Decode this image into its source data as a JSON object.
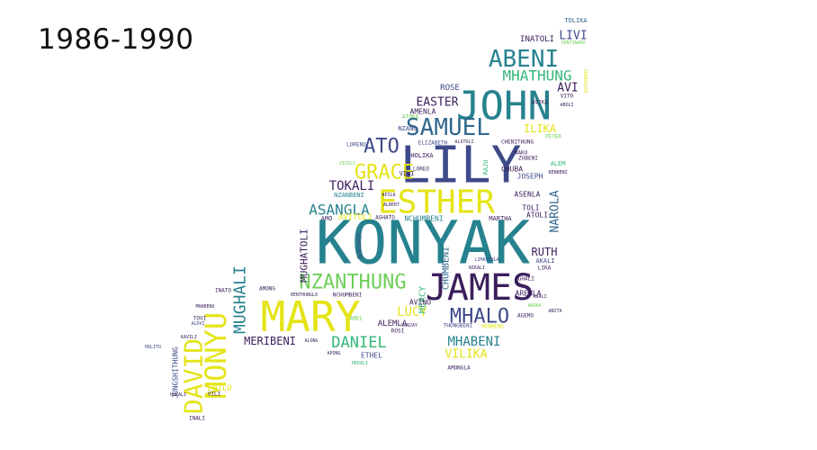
{
  "title": "1986-1990",
  "palette": {
    "dark-purple": "#3b1f5c",
    "indigo": "#3e4a89",
    "blue": "#31688e",
    "teal": "#26828e",
    "green": "#35b779",
    "lime": "#6ece58",
    "yellow": "#e4e419"
  },
  "words": [
    {
      "text": "KONYAK",
      "color": "#26828e"
    },
    {
      "text": "LILY",
      "color": "#3e4a89"
    },
    {
      "text": "JOHN",
      "color": "#26828e"
    },
    {
      "text": "ESTHER",
      "color": "#e4e419"
    },
    {
      "text": "JAMES",
      "color": "#3b1f5c"
    },
    {
      "text": "MARY",
      "color": "#e4e419"
    },
    {
      "text": "SAMUEL",
      "color": "#31688e"
    },
    {
      "text": "ABENI",
      "color": "#26828e"
    },
    {
      "text": "MONYU",
      "color": "#e4e419"
    },
    {
      "text": "DAVID",
      "color": "#e4e419"
    },
    {
      "text": "NZANTHUNG",
      "color": "#6ece58"
    },
    {
      "text": "MHALO",
      "color": "#3e4a89"
    },
    {
      "text": "GRACE",
      "color": "#e4e419"
    },
    {
      "text": "ATO",
      "color": "#3e4a89"
    },
    {
      "text": "MHATHUNG",
      "color": "#35b779"
    },
    {
      "text": "MUGHALI",
      "color": "#26828e"
    },
    {
      "text": "DANIEL",
      "color": "#35b779"
    },
    {
      "text": "ASANGLA",
      "color": "#26828e"
    },
    {
      "text": "MHABENI",
      "color": "#26828e"
    },
    {
      "text": "TOKALI",
      "color": "#3b1f5c"
    },
    {
      "text": "MERIBENI",
      "color": "#3b1f5c"
    },
    {
      "text": "NAROLA",
      "color": "#31688e"
    },
    {
      "text": "LUCY",
      "color": "#e4e419"
    },
    {
      "text": "EASTER",
      "color": "#3b1f5c"
    },
    {
      "text": "VILIKA",
      "color": "#e4e419"
    },
    {
      "text": "LIVI",
      "color": "#3e4a89"
    },
    {
      "text": "AVI",
      "color": "#3b1f5c"
    },
    {
      "text": "RUTH",
      "color": "#3b1f5c"
    },
    {
      "text": "ILIKA",
      "color": "#e4e419"
    },
    {
      "text": "MUGHATOLI",
      "color": "#3b1f5c"
    },
    {
      "text": "MERCY",
      "color": "#35b779"
    },
    {
      "text": "CHUMBENI",
      "color": "#31688e"
    },
    {
      "text": "ROSE",
      "color": "#3e4a89"
    },
    {
      "text": "ALEMLA",
      "color": "#3b1f5c"
    },
    {
      "text": "AVITOLI",
      "color": "#e4e419"
    },
    {
      "text": "INATOLI",
      "color": "#3b1f5c"
    },
    {
      "text": "TOLIKA",
      "color": "#31688e"
    },
    {
      "text": "AMENLA",
      "color": "#3b1f5c"
    },
    {
      "text": "EMILO",
      "color": "#e4e419"
    },
    {
      "text": "NCHUMBENI",
      "color": "#26828e"
    },
    {
      "text": "ASENLA",
      "color": "#3b1f5c"
    },
    {
      "text": "TOLI",
      "color": "#3b1f5c"
    },
    {
      "text": "ATOLI",
      "color": "#3b1f5c"
    },
    {
      "text": "AKALI",
      "color": "#3e4a89"
    },
    {
      "text": "ARENLA",
      "color": "#3b1f5c"
    },
    {
      "text": "CHUBA",
      "color": "#3b1f5c"
    },
    {
      "text": "JOSEPH",
      "color": "#3e4a89"
    },
    {
      "text": "MARTHA",
      "color": "#3b1f5c"
    },
    {
      "text": "AVINO",
      "color": "#3b1f5c"
    },
    {
      "text": "ETHEL",
      "color": "#3e4a89"
    },
    {
      "text": "AMONGLA",
      "color": "#3b1f5c"
    },
    {
      "text": "NZANBENI",
      "color": "#26828e"
    },
    {
      "text": "LORENO",
      "color": "#3e4a89"
    },
    {
      "text": "HOLIKA",
      "color": "#3b1f5c"
    },
    {
      "text": "VIVI",
      "color": "#3b1f5c"
    },
    {
      "text": "ELIZABETH",
      "color": "#3e4a89"
    },
    {
      "text": "NZANO",
      "color": "#3e4a89"
    },
    {
      "text": "CHENITHUNG",
      "color": "#3b1f5c"
    },
    {
      "text": "PETER",
      "color": "#6ece58"
    },
    {
      "text": "ALEM",
      "color": "#35b779"
    },
    {
      "text": "INATO",
      "color": "#3b1f5c"
    },
    {
      "text": "TOVI",
      "color": "#3b1f5c"
    },
    {
      "text": "ALOVI",
      "color": "#3e4a89"
    },
    {
      "text": "VILI",
      "color": "#3b1f5c"
    },
    {
      "text": "INALI",
      "color": "#3b1f5c"
    },
    {
      "text": "JUNGSHITHUNG",
      "color": "#3e4a89"
    },
    {
      "text": "LIKA",
      "color": "#3b1f5c"
    },
    {
      "text": "AGHALI",
      "color": "#3b1f5c"
    },
    {
      "text": "AGEMO",
      "color": "#3b1f5c"
    },
    {
      "text": "LIMASENLA",
      "color": "#3e4a89"
    },
    {
      "text": "ALONG",
      "color": "#3b1f5c"
    },
    {
      "text": "APONG",
      "color": "#3b1f5c"
    },
    {
      "text": "ABEL",
      "color": "#6ece58"
    },
    {
      "text": "AMO",
      "color": "#3b1f5c"
    },
    {
      "text": "AGHATO",
      "color": "#3b1f5c"
    },
    {
      "text": "BENJAMIN",
      "color": "#3e4a89"
    },
    {
      "text": "AVIKA",
      "color": "#3b1f5c"
    },
    {
      "text": "VITO",
      "color": "#3b1f5c"
    },
    {
      "text": "ABOLI",
      "color": "#3b1f5c"
    },
    {
      "text": "RAJU",
      "color": "#35b779"
    },
    {
      "text": "LOREO",
      "color": "#3b1f5c"
    },
    {
      "text": "ZUBENI",
      "color": "#3b1f5c"
    },
    {
      "text": "ROSI",
      "color": "#3b1f5c"
    },
    {
      "text": "MONBENI",
      "color": "#e4e419"
    },
    {
      "text": "THONGBENI",
      "color": "#3e4a89"
    },
    {
      "text": "ALBERT",
      "color": "#3b1f5c"
    },
    {
      "text": "APILA",
      "color": "#3b1f5c"
    },
    {
      "text": "NAKU",
      "color": "#3b1f5c"
    },
    {
      "text": "ALOTOLI",
      "color": "#3b1f5c"
    },
    {
      "text": "RENBENI",
      "color": "#3b1f5c"
    },
    {
      "text": "NCHUMBENI",
      "color": "#3b1f5c"
    },
    {
      "text": "ANOKA",
      "color": "#6ece58"
    },
    {
      "text": "HEKALI",
      "color": "#35b779"
    },
    {
      "text": "SANJAY",
      "color": "#3b1f5c"
    },
    {
      "text": "HOLITO",
      "color": "#3e4a89"
    },
    {
      "text": "KAVILI",
      "color": "#3b1f5c"
    },
    {
      "text": "HUKALI",
      "color": "#3b1f5c"
    },
    {
      "text": "RENTHUNGLO",
      "color": "#3b1f5c"
    },
    {
      "text": "AMONG",
      "color": "#3b1f5c"
    },
    {
      "text": "ZUCHIBENI",
      "color": "#e4e419"
    },
    {
      "text": "SENTINARO",
      "color": "#6ece58"
    },
    {
      "text": "ATOKA",
      "color": "#6ece58"
    },
    {
      "text": "ANITA",
      "color": "#3b1f5c"
    },
    {
      "text": "AKALI",
      "color": "#3b1f5c"
    },
    {
      "text": "NIKALI",
      "color": "#3b1f5c"
    },
    {
      "text": "VIVILI",
      "color": "#6ece58"
    },
    {
      "text": "MHABENO",
      "color": "#3b1f5c"
    }
  ]
}
